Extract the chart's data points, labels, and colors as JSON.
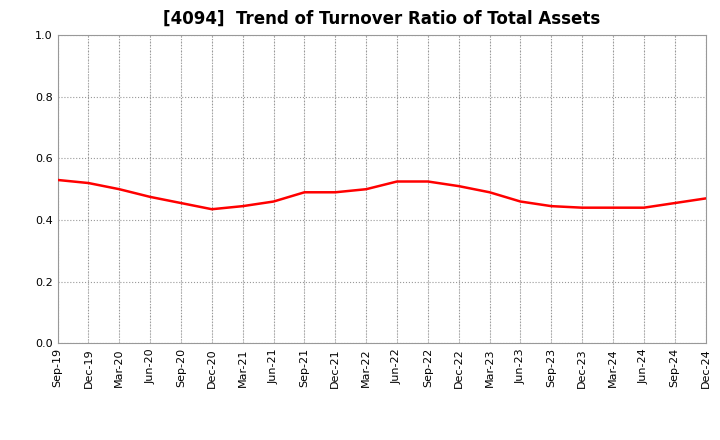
{
  "title": "[4094]  Trend of Turnover Ratio of Total Assets",
  "x_labels": [
    "Sep-19",
    "Dec-19",
    "Mar-20",
    "Jun-20",
    "Sep-20",
    "Dec-20",
    "Mar-21",
    "Jun-21",
    "Sep-21",
    "Dec-21",
    "Mar-22",
    "Jun-22",
    "Sep-22",
    "Dec-22",
    "Mar-23",
    "Jun-23",
    "Sep-23",
    "Dec-23",
    "Mar-24",
    "Jun-24",
    "Sep-24",
    "Dec-24"
  ],
  "y_values": [
    0.53,
    0.52,
    0.5,
    0.475,
    0.455,
    0.435,
    0.445,
    0.46,
    0.49,
    0.49,
    0.5,
    0.525,
    0.525,
    0.51,
    0.49,
    0.46,
    0.445,
    0.44,
    0.44,
    0.44,
    0.455,
    0.47
  ],
  "ylim": [
    0.0,
    1.0
  ],
  "yticks": [
    0.0,
    0.2,
    0.4,
    0.6,
    0.8,
    1.0
  ],
  "line_color": "#FF0000",
  "line_width": 1.8,
  "bg_color": "#FFFFFF",
  "plot_bg_color": "#FFFFFF",
  "grid_color": "#999999",
  "title_fontsize": 12,
  "tick_fontsize": 8
}
